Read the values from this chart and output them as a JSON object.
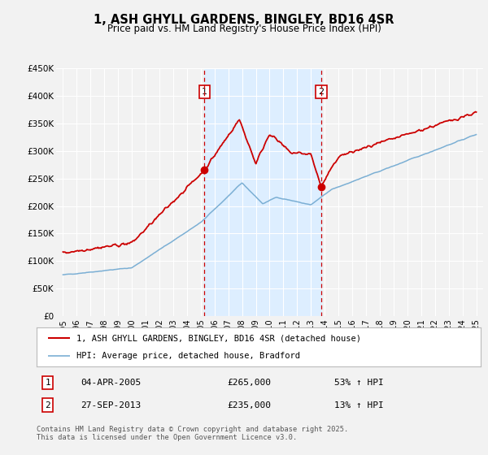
{
  "title": "1, ASH GHYLL GARDENS, BINGLEY, BD16 4SR",
  "subtitle": "Price paid vs. HM Land Registry's House Price Index (HPI)",
  "legend_line1": "1, ASH GHYLL GARDENS, BINGLEY, BD16 4SR (detached house)",
  "legend_line2": "HPI: Average price, detached house, Bradford",
  "marker1_date": "04-APR-2005",
  "marker1_price": 265000,
  "marker1_hpi": "53% ↑ HPI",
  "marker2_date": "27-SEP-2013",
  "marker2_price": 235000,
  "marker2_hpi": "13% ↑ HPI",
  "marker1_x": 2005.26,
  "marker2_x": 2013.74,
  "marker1_y": 265000,
  "marker2_y": 235000,
  "vline1_x": 2005.26,
  "vline2_x": 2013.74,
  "shade_start": 2005.26,
  "shade_end": 2013.74,
  "red_color": "#cc0000",
  "blue_color": "#7bafd4",
  "shade_color": "#ddeeff",
  "background_color": "#f2f2f2",
  "grid_color": "#ffffff",
  "footnote": "Contains HM Land Registry data © Crown copyright and database right 2025.\nThis data is licensed under the Open Government Licence v3.0.",
  "ylim": [
    0,
    450000
  ],
  "xlim": [
    1994.5,
    2025.5
  ],
  "yticks": [
    0,
    50000,
    100000,
    150000,
    200000,
    250000,
    300000,
    350000,
    400000,
    450000
  ],
  "ytick_labels": [
    "£0",
    "£50K",
    "£100K",
    "£150K",
    "£200K",
    "£250K",
    "£300K",
    "£350K",
    "£400K",
    "£450K"
  ],
  "xticks": [
    1995,
    1996,
    1997,
    1998,
    1999,
    2000,
    2001,
    2002,
    2003,
    2004,
    2005,
    2006,
    2007,
    2008,
    2009,
    2010,
    2011,
    2012,
    2013,
    2014,
    2015,
    2016,
    2017,
    2018,
    2019,
    2020,
    2021,
    2022,
    2023,
    2024,
    2025
  ]
}
